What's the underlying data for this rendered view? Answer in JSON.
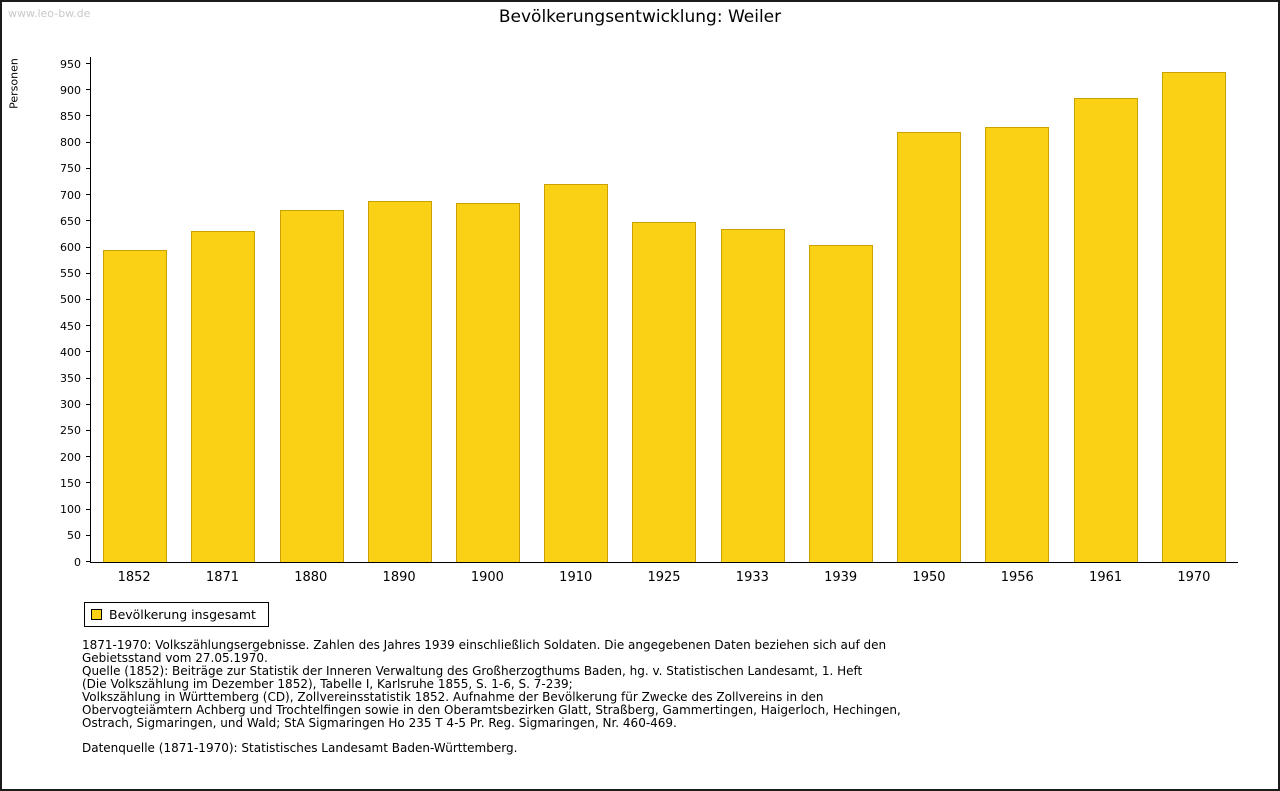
{
  "page": {
    "watermark": "www.leo-bw.de"
  },
  "chart_data": {
    "type": "bar",
    "title": "Bevölkerungsentwicklung: Weiler",
    "xlabel": "",
    "ylabel": "Personen",
    "ylim": [
      0,
      950
    ],
    "ytick_step": 50,
    "grid": false,
    "legend_position": "bottom-left",
    "legend": {
      "entries": [
        "Bevölkerung insgesamt"
      ]
    },
    "categories": [
      "1852",
      "1871",
      "1880",
      "1890",
      "1900",
      "1910",
      "1925",
      "1933",
      "1939",
      "1950",
      "1956",
      "1961",
      "1970"
    ],
    "values": [
      596,
      631,
      671,
      689,
      685,
      722,
      649,
      635,
      604,
      820,
      830,
      885,
      935
    ],
    "bar_color": "#fbd116",
    "bar_border_color": "#c9a200"
  },
  "footnotes": {
    "lines": [
      "1871-1970: Volkszählungsergebnisse. Zahlen des Jahres 1939 einschließlich Soldaten. Die angegebenen Daten beziehen sich auf den",
      "Gebietsstand vom 27.05.1970.",
      "Quelle (1852): Beiträge zur Statistik der Inneren Verwaltung des Großherzogthums Baden, hg. v. Statistischen Landesamt, 1. Heft",
      "(Die Volkszählung im Dezember 1852), Tabelle I, Karlsruhe 1855, S. 1-6, S. 7-239;",
      "Volkszählung in Württemberg (CD), Zollvereinsstatistik 1852. Aufnahme der Bevölkerung für Zwecke des Zollvereins in den",
      "Obervogteiämtern Achberg und Trochtelfingen sowie in den Oberamtsbezirken Glatt, Straßberg, Gammertingen, Haigerloch, Hechingen,",
      "Ostrach, Sigmaringen, und Wald; StA Sigmaringen Ho 235 T 4-5 Pr. Reg. Sigmaringen, Nr. 460-469."
    ],
    "datasource": "Datenquelle (1871-1970): Statistisches Landesamt Baden-Württemberg."
  }
}
